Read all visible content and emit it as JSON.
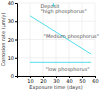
{
  "chart_data": {
    "type": "line",
    "xlabel": "Exposure time (days)",
    "ylabel": "Corrosion rate (μm/y)",
    "x": [
      10,
      57
    ],
    "series": [
      {
        "color": "#55ddee",
        "values": [
          33,
          12
        ]
      },
      {
        "color": "#55ddee",
        "values": [
          7.5,
          7.5
        ]
      }
    ],
    "xlim": [
      0,
      60
    ],
    "ylim": [
      0,
      40
    ],
    "xticks": [
      10,
      20,
      30,
      40,
      50,
      60
    ],
    "yticks": [
      0,
      10,
      20,
      30,
      40
    ],
    "grid": true,
    "annotations": [
      {
        "text": "Deposit",
        "x": 18,
        "y": 39.5
      },
      {
        "text": "\"high phosphorus\"",
        "x": 18,
        "y": 36.5
      },
      {
        "text": "\"Medium phosphorus\"",
        "x": 32,
        "y": 23
      },
      {
        "text": "\"low phosphorus\"",
        "x": 22,
        "y": 5
      }
    ],
    "arrow": {
      "x": 28,
      "y": [
        38,
        40
      ],
      "color": "#55ddee"
    }
  }
}
